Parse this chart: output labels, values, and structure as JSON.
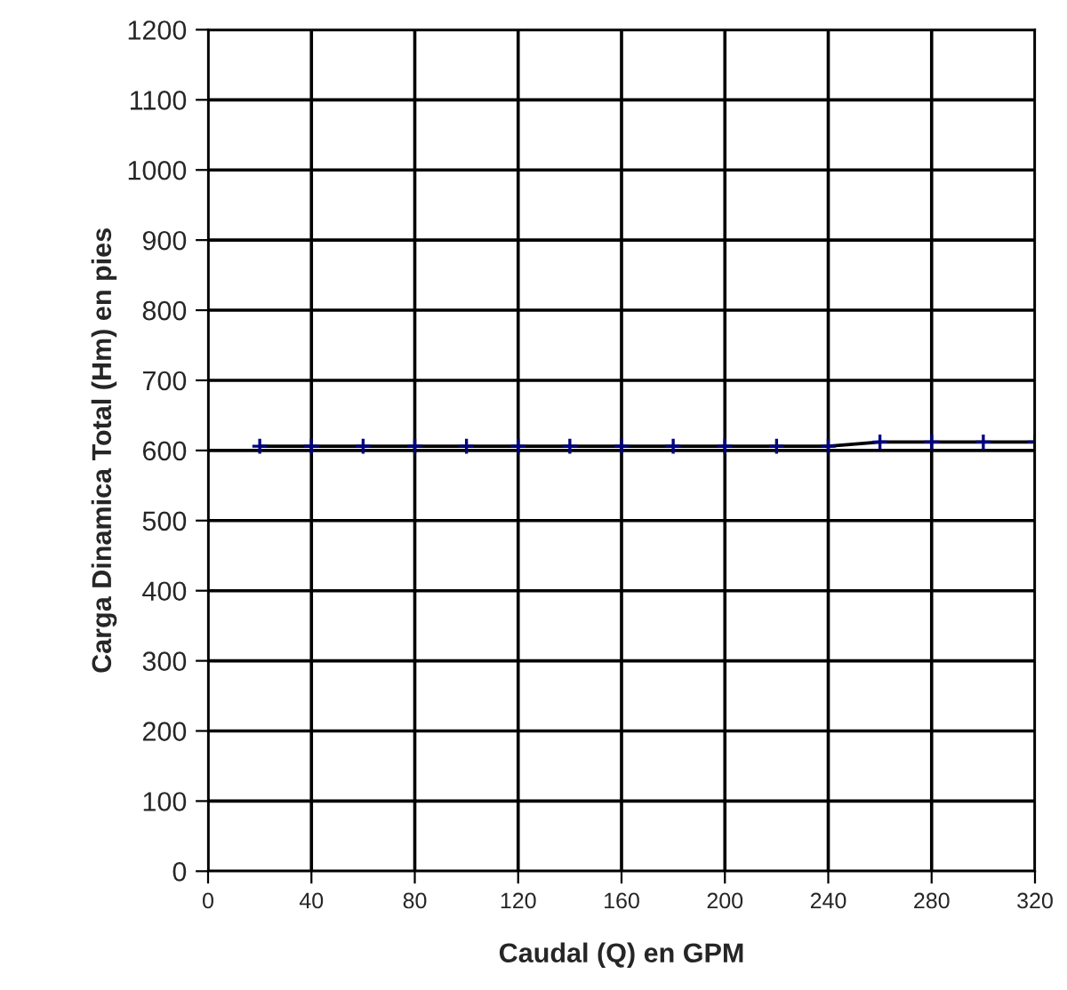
{
  "chart_data": {
    "type": "line",
    "xlabel": "Caudal (Q) en GPM",
    "ylabel": "Carga Dinamica Total (Hm) en pies",
    "x": [
      20,
      40,
      60,
      80,
      100,
      120,
      140,
      160,
      180,
      200,
      220,
      240,
      260,
      280,
      300,
      320
    ],
    "series": [
      {
        "color": "#000080",
        "values": [
          606,
          606,
          606,
          606,
          606,
          606,
          606,
          606,
          606,
          606,
          606,
          606,
          612,
          612,
          612,
          612
        ]
      }
    ],
    "xlim": [
      0,
      320
    ],
    "xticks": [
      0,
      40,
      80,
      120,
      160,
      200,
      240,
      280,
      320
    ],
    "ylim": [
      0,
      1200
    ],
    "yticks": [
      0,
      100,
      200,
      300,
      400,
      500,
      600,
      700,
      800,
      900,
      1000,
      1100,
      1200
    ],
    "grid": true,
    "marker": "cross",
    "line_style": "solid",
    "legend": false
  }
}
